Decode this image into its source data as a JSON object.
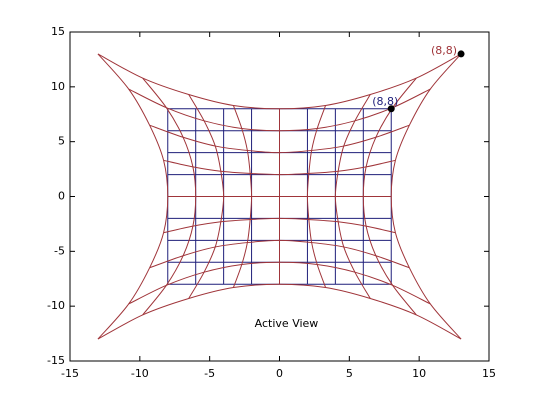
{
  "chart_data": {
    "type": "grid-warp",
    "xlim": [
      -15,
      15
    ],
    "ylim": [
      -15,
      15
    ],
    "xticks": [
      -15,
      -10,
      -5,
      0,
      5,
      10,
      15
    ],
    "yticks": [
      -15,
      -10,
      -5,
      0,
      5,
      10,
      15
    ],
    "grid": {
      "color": "#1f1f7a",
      "x": [
        -8,
        -6,
        -4,
        -2,
        0,
        2,
        4,
        6,
        8
      ],
      "y": [
        -8,
        -6,
        -4,
        -2,
        0,
        2,
        4,
        6,
        8
      ]
    },
    "warped": {
      "color": "#a0353a",
      "x": [
        [
          -13,
          -9.8,
          -6.5,
          -3.3,
          0,
          3.3,
          6.5,
          9.8,
          13
        ],
        [
          -10.8,
          -8.1,
          -5.4,
          -2.7,
          0,
          2.7,
          5.4,
          8.1,
          10.8
        ],
        [
          -9.3,
          -6.9,
          -4.6,
          -2.3,
          0,
          2.3,
          4.6,
          6.9,
          9.3
        ],
        [
          -8.3,
          -6.2,
          -4.2,
          -2.1,
          0,
          2.1,
          4.2,
          6.2,
          8.3
        ],
        [
          -8,
          -6,
          -4,
          -2,
          0,
          2,
          4,
          6,
          8
        ],
        [
          -8.3,
          -6.2,
          -4.2,
          -2.1,
          0,
          2.1,
          4.2,
          6.2,
          8.3
        ],
        [
          -9.3,
          -6.9,
          -4.6,
          -2.3,
          0,
          2.3,
          4.6,
          6.9,
          9.3
        ],
        [
          -10.8,
          -8.1,
          -5.4,
          -2.7,
          0,
          2.7,
          5.4,
          8.1,
          10.8
        ],
        [
          -13,
          -9.8,
          -6.5,
          -3.3,
          0,
          3.3,
          6.5,
          9.8,
          13
        ]
      ],
      "y": [
        [
          -13,
          -10.8,
          -9.3,
          -8.3,
          -8,
          -8.3,
          -9.3,
          -10.8,
          -13
        ],
        [
          -9.8,
          -8.1,
          -6.9,
          -6.2,
          -6,
          -6.2,
          -6.9,
          -8.1,
          -9.8
        ],
        [
          -6.5,
          -5.4,
          -4.6,
          -4.2,
          -4,
          -4.2,
          -4.6,
          -5.4,
          -6.5
        ],
        [
          -3.3,
          -2.7,
          -2.3,
          -2.1,
          -2,
          -2.1,
          -2.3,
          -2.7,
          -3.3
        ],
        [
          0,
          0,
          0,
          0,
          0,
          0,
          0,
          0,
          0
        ],
        [
          3.3,
          2.7,
          2.3,
          2.1,
          2,
          2.1,
          2.3,
          2.7,
          3.3
        ],
        [
          6.5,
          5.4,
          4.6,
          4.2,
          4,
          4.2,
          4.6,
          5.4,
          6.5
        ],
        [
          9.8,
          8.1,
          6.9,
          6.2,
          6,
          6.2,
          6.9,
          8.1,
          9.8
        ],
        [
          13,
          10.8,
          9.3,
          8.3,
          8,
          8.3,
          9.3,
          10.8,
          13
        ]
      ]
    },
    "point_labels": [
      "(8,8)",
      "(8,8)"
    ],
    "annotation": "Active View"
  }
}
